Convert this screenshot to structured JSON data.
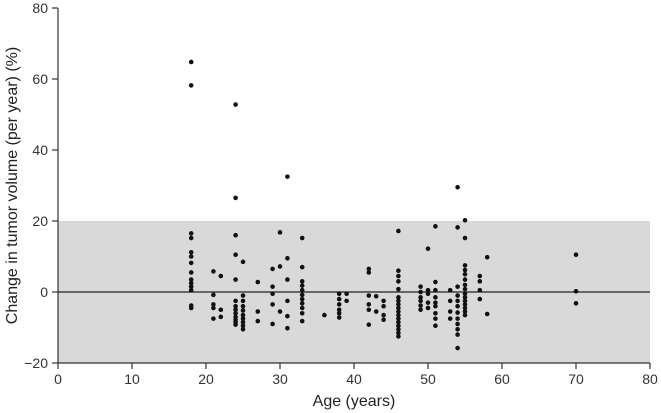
{
  "chart_data": {
    "type": "scatter",
    "title": "",
    "xlabel": "Age (years)",
    "ylabel": "Change in tumor volume (per year) (%)",
    "xlim": [
      0,
      80
    ],
    "ylim": [
      -20,
      80
    ],
    "xticks": [
      0,
      10,
      20,
      30,
      40,
      50,
      60,
      70,
      80
    ],
    "yticks": [
      -20,
      0,
      20,
      40,
      60,
      80
    ],
    "grid": false,
    "legend": "none",
    "reference_band": {
      "from": -20,
      "to": 20,
      "color": "#d9d9d9"
    },
    "reference_line": {
      "y": 0,
      "color": "#222222"
    },
    "colors": {
      "points": "#111111",
      "axis": "#333333",
      "band": "#d9d9d9"
    },
    "series": [
      {
        "points": [
          [
            18,
            64.8
          ],
          [
            18,
            58.2
          ],
          [
            18,
            16.5
          ],
          [
            18,
            15.2
          ],
          [
            18,
            11.2
          ],
          [
            18,
            10
          ],
          [
            18,
            8.2
          ],
          [
            18,
            5.5
          ],
          [
            18,
            3.5
          ],
          [
            18,
            2.5
          ],
          [
            18,
            1.5
          ],
          [
            18,
            0.5
          ],
          [
            18,
            -3.8
          ],
          [
            18,
            -4.5
          ],
          [
            21,
            5.8
          ],
          [
            21,
            -0.8
          ],
          [
            21,
            -3.5
          ],
          [
            21,
            -4.5
          ],
          [
            21,
            -7.5
          ],
          [
            22,
            4.5
          ],
          [
            22,
            -5
          ],
          [
            22,
            -7
          ],
          [
            24,
            52.8
          ],
          [
            24,
            26.5
          ],
          [
            24,
            16
          ],
          [
            24,
            10.5
          ],
          [
            24,
            3.5
          ],
          [
            24,
            -2.5
          ],
          [
            24,
            -4
          ],
          [
            24,
            -5
          ],
          [
            24,
            -6
          ],
          [
            24,
            -7
          ],
          [
            24,
            -7.8
          ],
          [
            24,
            -8.5
          ],
          [
            24,
            -9.2
          ],
          [
            25,
            8.5
          ],
          [
            25,
            -1
          ],
          [
            25,
            -2.5
          ],
          [
            25,
            -4
          ],
          [
            25,
            -5.2
          ],
          [
            25,
            -6.5
          ],
          [
            25,
            -7.5
          ],
          [
            25,
            -8.5
          ],
          [
            25,
            -9.5
          ],
          [
            25,
            -10.5
          ],
          [
            27,
            2.8
          ],
          [
            27,
            -5.5
          ],
          [
            27,
            -8.2
          ],
          [
            29,
            6.5
          ],
          [
            29,
            1.5
          ],
          [
            29,
            -0.5
          ],
          [
            29,
            -3.5
          ],
          [
            29,
            -9
          ],
          [
            30,
            7.2
          ],
          [
            30,
            16.8
          ],
          [
            30,
            -5.5
          ],
          [
            31,
            32.5
          ],
          [
            31,
            9.5
          ],
          [
            31,
            3.5
          ],
          [
            31,
            -2.5
          ],
          [
            31,
            -6.8
          ],
          [
            31,
            -10.2
          ],
          [
            33,
            15.2
          ],
          [
            33,
            7
          ],
          [
            33,
            3
          ],
          [
            33,
            1.8
          ],
          [
            33,
            0.5
          ],
          [
            33,
            -0.8
          ],
          [
            33,
            -2
          ],
          [
            33,
            -3.2
          ],
          [
            33,
            -4.5
          ],
          [
            33,
            -6
          ],
          [
            33,
            -8.2
          ],
          [
            36,
            -6.5
          ],
          [
            38,
            -0.5
          ],
          [
            38,
            -2
          ],
          [
            38,
            -3.5
          ],
          [
            38,
            -5
          ],
          [
            38,
            -6
          ],
          [
            38,
            -7.2
          ],
          [
            39,
            -0.5
          ],
          [
            39,
            -2.5
          ],
          [
            42,
            6.5
          ],
          [
            42,
            5.5
          ],
          [
            42,
            -1
          ],
          [
            42,
            -3.5
          ],
          [
            42,
            -5
          ],
          [
            42,
            -9.2
          ],
          [
            43,
            -1.2
          ],
          [
            43,
            -5.5
          ],
          [
            44,
            -2.5
          ],
          [
            44,
            -4
          ],
          [
            44,
            -6.5
          ],
          [
            44,
            -7.8
          ],
          [
            46,
            17.2
          ],
          [
            46,
            6
          ],
          [
            46,
            4.5
          ],
          [
            46,
            3
          ],
          [
            46,
            0.8
          ],
          [
            46,
            -1.5
          ],
          [
            46,
            -2.5
          ],
          [
            46,
            -3.5
          ],
          [
            46,
            -4.5
          ],
          [
            46,
            -5.5
          ],
          [
            46,
            -6.5
          ],
          [
            46,
            -7.5
          ],
          [
            46,
            -8.5
          ],
          [
            46,
            -9.5
          ],
          [
            46,
            -10.5
          ],
          [
            46,
            -11.5
          ],
          [
            46,
            -12.5
          ],
          [
            49,
            1.5
          ],
          [
            49,
            0
          ],
          [
            49,
            -1.5
          ],
          [
            49,
            -2.5
          ],
          [
            49,
            -3.8
          ],
          [
            49,
            -5
          ],
          [
            50,
            12.2
          ],
          [
            50,
            0.5
          ],
          [
            50,
            -0.5
          ],
          [
            50,
            -3
          ],
          [
            50,
            -4.5
          ],
          [
            51,
            18.5
          ],
          [
            51,
            2.8
          ],
          [
            51,
            0.5
          ],
          [
            51,
            -1.5
          ],
          [
            51,
            -3
          ],
          [
            51,
            -4
          ],
          [
            51,
            -6
          ],
          [
            51,
            -7.5
          ],
          [
            51,
            -9.5
          ],
          [
            53,
            0.5
          ],
          [
            53,
            -2.5
          ],
          [
            53,
            -5.5
          ],
          [
            53,
            -7.5
          ],
          [
            54,
            29.5
          ],
          [
            54,
            18.2
          ],
          [
            54,
            1.5
          ],
          [
            54,
            -1
          ],
          [
            54,
            -2.5
          ],
          [
            54,
            -4
          ],
          [
            54,
            -5.8
          ],
          [
            54,
            -7.5
          ],
          [
            54,
            -9
          ],
          [
            54,
            -10.5
          ],
          [
            54,
            -12
          ],
          [
            54,
            -15.8
          ],
          [
            55,
            20.2
          ],
          [
            55,
            15.2
          ],
          [
            55,
            7.5
          ],
          [
            55,
            6.2
          ],
          [
            55,
            5
          ],
          [
            55,
            3.5
          ],
          [
            55,
            2
          ],
          [
            55,
            0.8
          ],
          [
            55,
            -0.5
          ],
          [
            55,
            -1.5
          ],
          [
            55,
            -2.5
          ],
          [
            55,
            -3.5
          ],
          [
            55,
            -4.5
          ],
          [
            55,
            -5.5
          ],
          [
            55,
            -6.5
          ],
          [
            57,
            4.5
          ],
          [
            57,
            3
          ],
          [
            57,
            0.5
          ],
          [
            57,
            -2
          ],
          [
            58,
            9.8
          ],
          [
            58,
            -6.2
          ],
          [
            70,
            10.5
          ],
          [
            70,
            0.2
          ],
          [
            70,
            -3.2
          ]
        ]
      }
    ]
  }
}
